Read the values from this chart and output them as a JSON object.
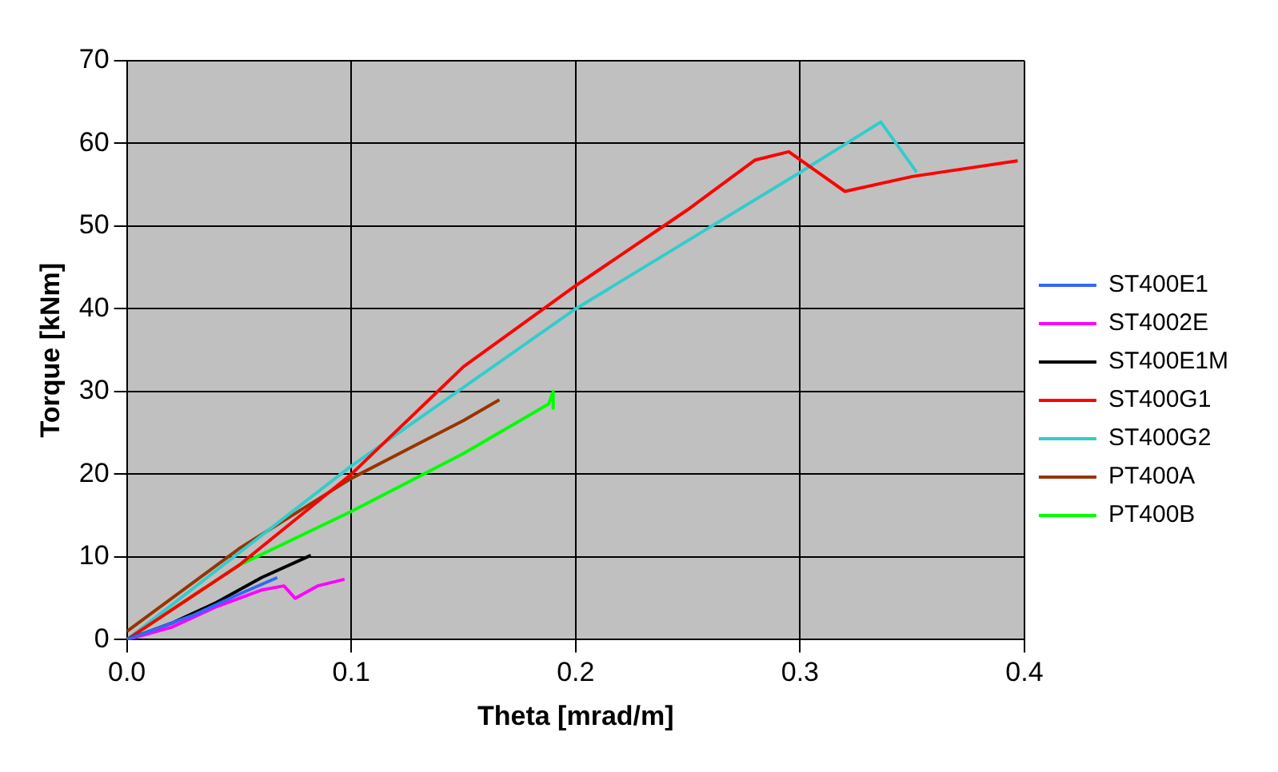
{
  "chart_data": {
    "type": "line",
    "xlabel": "Theta [mrad/m]",
    "ylabel": "Torque [kNm]",
    "xlim": [
      0,
      0.4
    ],
    "xticks": [
      {
        "value": 0,
        "label": "0.0"
      },
      0.1,
      0.2,
      0.3,
      0.4
    ],
    "ylim": [
      0,
      70
    ],
    "yticks": [
      0,
      10,
      20,
      30,
      40,
      50,
      60,
      70
    ],
    "grid": true,
    "legend": "right",
    "marker": "none",
    "line_style": "solid",
    "series": [
      {
        "name": "ST400E1",
        "color": "#3366ff",
        "x": [
          0,
          0.03,
          0.05,
          0.067
        ],
        "values": [
          0,
          3,
          5.5,
          7.5
        ]
      },
      {
        "name": "ST4002E",
        "color": "#ff00ff",
        "x": [
          0,
          0.02,
          0.04,
          0.06,
          0.07,
          0.075,
          0.085,
          0.097
        ],
        "values": [
          0,
          1.5,
          4,
          6,
          6.5,
          5,
          6.5,
          7.3
        ]
      },
      {
        "name": "ST400E1M",
        "color": "#000000",
        "x": [
          0,
          0.02,
          0.04,
          0.06,
          0.082
        ],
        "values": [
          0,
          2,
          4.5,
          7.5,
          10.2
        ]
      },
      {
        "name": "ST400G1",
        "color": "#ff0000",
        "x": [
          0,
          0.05,
          0.1,
          0.15,
          0.2,
          0.25,
          0.28,
          0.295,
          0.32,
          0.35,
          0.397
        ],
        "values": [
          0,
          9,
          20,
          33,
          42.8,
          52,
          58,
          59,
          54.2,
          56,
          57.9
        ]
      },
      {
        "name": "ST400G2",
        "color": "#33cccc",
        "x": [
          0,
          0.1,
          0.2,
          0.3,
          0.336,
          0.352
        ],
        "values": [
          0,
          21,
          40,
          56.5,
          62.6,
          56.5
        ]
      },
      {
        "name": "PT400A",
        "color": "#993300",
        "x": [
          0,
          0.05,
          0.1,
          0.15,
          0.166
        ],
        "values": [
          1,
          11,
          19.5,
          26.5,
          29
        ]
      },
      {
        "name": "PT400B",
        "color": "#00ff00",
        "x": [
          0,
          0.05,
          0.1,
          0.15,
          0.188,
          0.19,
          0.19
        ],
        "values": [
          0,
          9,
          15.5,
          22.5,
          28.5,
          30,
          28
        ]
      }
    ]
  }
}
